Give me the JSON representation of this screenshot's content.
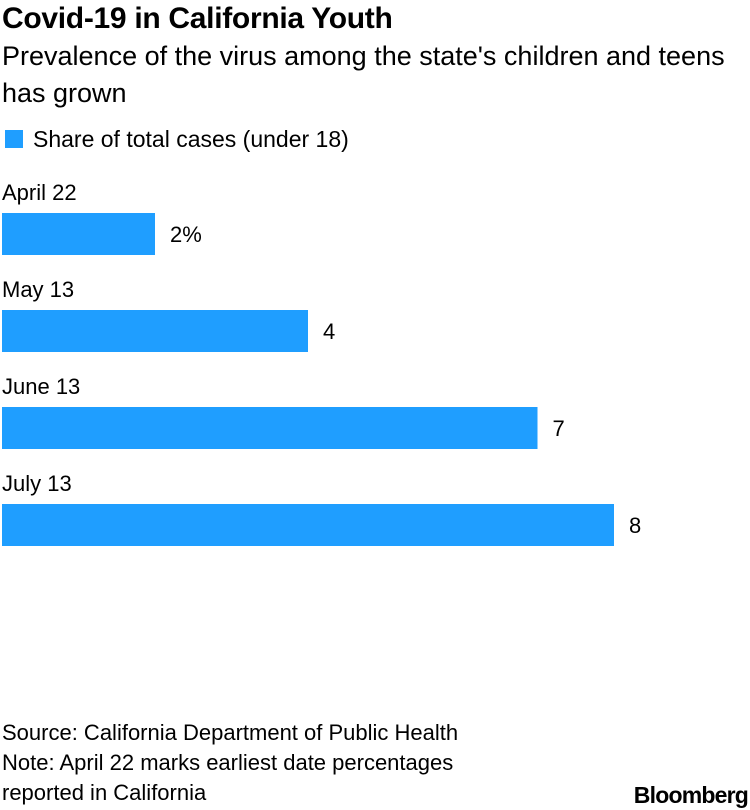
{
  "header": {
    "title": "Covid-19 in California Youth",
    "subtitle": "Prevalence of the virus among the state's children and teens has grown"
  },
  "legend": {
    "label": "Share of total cases (under 18)",
    "color": "#1f9eff"
  },
  "chart_data": {
    "type": "bar",
    "orientation": "horizontal",
    "categories": [
      "April 22",
      "May 13",
      "June 13",
      "July 13"
    ],
    "values": [
      2,
      4,
      7,
      8
    ],
    "value_labels": [
      "2%",
      "4",
      "7",
      "8"
    ],
    "series": [
      {
        "name": "Share of total cases (under 18)",
        "values": [
          2,
          4,
          7,
          8
        ],
        "color": "#1f9eff"
      }
    ],
    "xlim": [
      0,
      10
    ],
    "grid": false,
    "legend_position": "top-left"
  },
  "footer": {
    "source": "Source: California Department of Public Health",
    "note_line1": "Note: April 22 marks earliest date percentages",
    "note_line2": "reported in California"
  },
  "brand": {
    "logo_text": "Bloomberg"
  }
}
